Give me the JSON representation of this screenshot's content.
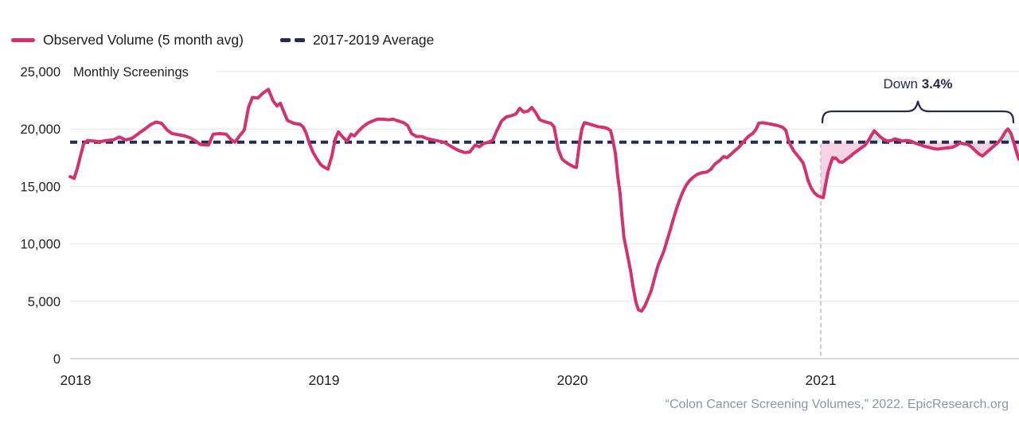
{
  "legend": {
    "items": [
      {
        "label": "Observed Volume (5 month avg)"
      },
      {
        "label": "2017-2019 Average"
      }
    ]
  },
  "axes": {
    "y_unit_label": "Monthly Screenings",
    "y_ticks": [
      {
        "label": "25,000",
        "value": 25000
      },
      {
        "label": "20,000",
        "value": 20000
      },
      {
        "label": "15,000",
        "value": 15000
      },
      {
        "label": "10,000",
        "value": 10000
      },
      {
        "label": "5,000",
        "value": 5000
      },
      {
        "label": "0",
        "value": 0
      }
    ],
    "x_ticks": [
      {
        "label": "2018",
        "t": 2018
      },
      {
        "label": "2019",
        "t": 2019
      },
      {
        "label": "2020",
        "t": 2020
      },
      {
        "label": "2021",
        "t": 2021
      }
    ]
  },
  "annotation": {
    "prefix": "Down ",
    "value": "3.4%"
  },
  "source_text": "“Colon Cancer Screening Volumes,” 2022. EpicResearch.org",
  "colors": {
    "observed_line": "#d2336e",
    "average_line": "#262b52",
    "below_avg_fill": "#f8d3e3",
    "above_avg_fill": "#c7e9e4",
    "annotation_text": "#262b52",
    "gridline": "#e4e4e4",
    "axis_line": "#c9cdd3",
    "divider_line": "#c6c6c6",
    "tick_text": "#1f1f1f",
    "source_text": "#8c95a5"
  },
  "chart_data": {
    "type": "line",
    "title": "",
    "ylabel": "Monthly Screenings",
    "ylim": [
      0,
      25000
    ],
    "xlim": [
      2017.97,
      2021.8
    ],
    "x_unit": "decimal_year",
    "grid": true,
    "legend_position": "top-left",
    "annotation": "Down 3.4%",
    "highlight_from": 2021.0,
    "average_2017_2019": 18850,
    "series": [
      {
        "name": "Observed Volume (5 month avg)",
        "points": [
          [
            2017.978,
            15850
          ],
          [
            2017.994,
            15700
          ],
          [
            2018.006,
            16500
          ],
          [
            2018.019,
            17600
          ],
          [
            2018.032,
            18700
          ],
          [
            2018.048,
            19000
          ],
          [
            2018.074,
            18950
          ],
          [
            2018.099,
            18900
          ],
          [
            2018.125,
            19000
          ],
          [
            2018.151,
            19050
          ],
          [
            2018.176,
            19300
          ],
          [
            2018.202,
            19050
          ],
          [
            2018.228,
            19200
          ],
          [
            2018.253,
            19600
          ],
          [
            2018.279,
            20000
          ],
          [
            2018.304,
            20400
          ],
          [
            2018.324,
            20600
          ],
          [
            2018.346,
            20500
          ],
          [
            2018.369,
            19900
          ],
          [
            2018.388,
            19600
          ],
          [
            2018.413,
            19500
          ],
          [
            2018.439,
            19400
          ],
          [
            2018.465,
            19200
          ],
          [
            2018.484,
            18950
          ],
          [
            2018.503,
            18650
          ],
          [
            2018.535,
            18600
          ],
          [
            2018.554,
            19550
          ],
          [
            2018.58,
            19600
          ],
          [
            2018.606,
            19550
          ],
          [
            2018.625,
            19100
          ],
          [
            2018.641,
            18850
          ],
          [
            2018.66,
            19400
          ],
          [
            2018.679,
            19900
          ],
          [
            2018.696,
            21900
          ],
          [
            2018.712,
            22750
          ],
          [
            2018.734,
            22700
          ],
          [
            2018.753,
            23100
          ],
          [
            2018.776,
            23450
          ],
          [
            2018.795,
            22450
          ],
          [
            2018.811,
            22000
          ],
          [
            2018.824,
            22250
          ],
          [
            2018.84,
            21400
          ],
          [
            2018.853,
            20750
          ],
          [
            2018.878,
            20500
          ],
          [
            2018.904,
            20400
          ],
          [
            2018.917,
            20150
          ],
          [
            2018.929,
            19600
          ],
          [
            2018.942,
            18700
          ],
          [
            2018.955,
            18000
          ],
          [
            2018.971,
            17400
          ],
          [
            2018.987,
            16900
          ],
          [
            2019.003,
            16650
          ],
          [
            2019.016,
            16500
          ],
          [
            2019.032,
            17700
          ],
          [
            2019.045,
            19100
          ],
          [
            2019.058,
            19750
          ],
          [
            2019.077,
            19250
          ],
          [
            2019.093,
            18950
          ],
          [
            2019.109,
            19550
          ],
          [
            2019.122,
            19400
          ],
          [
            2019.138,
            19800
          ],
          [
            2019.157,
            20200
          ],
          [
            2019.176,
            20500
          ],
          [
            2019.196,
            20700
          ],
          [
            2019.215,
            20850
          ],
          [
            2019.237,
            20850
          ],
          [
            2019.26,
            20800
          ],
          [
            2019.279,
            20850
          ],
          [
            2019.298,
            20700
          ],
          [
            2019.321,
            20550
          ],
          [
            2019.337,
            20300
          ],
          [
            2019.353,
            19600
          ],
          [
            2019.372,
            19350
          ],
          [
            2019.394,
            19350
          ],
          [
            2019.417,
            19150
          ],
          [
            2019.439,
            19050
          ],
          [
            2019.462,
            18950
          ],
          [
            2019.484,
            18850
          ],
          [
            2019.503,
            18600
          ],
          [
            2019.526,
            18300
          ],
          [
            2019.545,
            18100
          ],
          [
            2019.567,
            17950
          ],
          [
            2019.587,
            18000
          ],
          [
            2019.609,
            18600
          ],
          [
            2019.625,
            18450
          ],
          [
            2019.644,
            18750
          ],
          [
            2019.663,
            18850
          ],
          [
            2019.68,
            19050
          ],
          [
            2019.695,
            19800
          ],
          [
            2019.715,
            20700
          ],
          [
            2019.734,
            21050
          ],
          [
            2019.753,
            21150
          ],
          [
            2019.772,
            21300
          ],
          [
            2019.788,
            21800
          ],
          [
            2019.804,
            21480
          ],
          [
            2019.821,
            21560
          ],
          [
            2019.837,
            21880
          ],
          [
            2019.853,
            21400
          ],
          [
            2019.869,
            20800
          ],
          [
            2019.891,
            20620
          ],
          [
            2019.913,
            20500
          ],
          [
            2019.926,
            20200
          ],
          [
            2019.936,
            19100
          ],
          [
            2019.942,
            18300
          ],
          [
            2019.949,
            17900
          ],
          [
            2019.958,
            17400
          ],
          [
            2019.968,
            17200
          ],
          [
            2019.981,
            17000
          ],
          [
            2019.994,
            16850
          ],
          [
            2020.006,
            16700
          ],
          [
            2020.016,
            16650
          ],
          [
            2020.029,
            18800
          ],
          [
            2020.038,
            20000
          ],
          [
            2020.048,
            20550
          ],
          [
            2020.061,
            20480
          ],
          [
            2020.08,
            20350
          ],
          [
            2020.103,
            20200
          ],
          [
            2020.122,
            20150
          ],
          [
            2020.141,
            20050
          ],
          [
            2020.154,
            19850
          ],
          [
            2020.163,
            19000
          ],
          [
            2020.173,
            17900
          ],
          [
            2020.183,
            15800
          ],
          [
            2020.192,
            14400
          ],
          [
            2020.199,
            12500
          ],
          [
            2020.208,
            10500
          ],
          [
            2020.221,
            9100
          ],
          [
            2020.234,
            7700
          ],
          [
            2020.244,
            6300
          ],
          [
            2020.256,
            4900
          ],
          [
            2020.266,
            4250
          ],
          [
            2020.279,
            4150
          ],
          [
            2020.292,
            4600
          ],
          [
            2020.304,
            5200
          ],
          [
            2020.317,
            5900
          ],
          [
            2020.327,
            6700
          ],
          [
            2020.337,
            7500
          ],
          [
            2020.346,
            8200
          ],
          [
            2020.356,
            8700
          ],
          [
            2020.369,
            9400
          ],
          [
            2020.381,
            10300
          ],
          [
            2020.394,
            11200
          ],
          [
            2020.407,
            12200
          ],
          [
            2020.42,
            13100
          ],
          [
            2020.433,
            13900
          ],
          [
            2020.446,
            14600
          ],
          [
            2020.458,
            15100
          ],
          [
            2020.471,
            15500
          ],
          [
            2020.487,
            15800
          ],
          [
            2020.503,
            16050
          ],
          [
            2020.522,
            16200
          ],
          [
            2020.542,
            16250
          ],
          [
            2020.558,
            16500
          ],
          [
            2020.574,
            16950
          ],
          [
            2020.593,
            17250
          ],
          [
            2020.609,
            17600
          ],
          [
            2020.622,
            17500
          ],
          [
            2020.638,
            17800
          ],
          [
            2020.654,
            18100
          ],
          [
            2020.67,
            18400
          ],
          [
            2020.689,
            18900
          ],
          [
            2020.708,
            19350
          ],
          [
            2020.728,
            19650
          ],
          [
            2020.74,
            20000
          ],
          [
            2020.75,
            20500
          ],
          [
            2020.766,
            20550
          ],
          [
            2020.785,
            20480
          ],
          [
            2020.804,
            20400
          ],
          [
            2020.827,
            20300
          ],
          [
            2020.846,
            20150
          ],
          [
            2020.859,
            19900
          ],
          [
            2020.869,
            19100
          ],
          [
            2020.878,
            18600
          ],
          [
            2020.891,
            18100
          ],
          [
            2020.904,
            17750
          ],
          [
            2020.917,
            17400
          ],
          [
            2020.929,
            17050
          ],
          [
            2020.939,
            16300
          ],
          [
            2020.949,
            15500
          ],
          [
            2020.962,
            14850
          ],
          [
            2020.974,
            14450
          ],
          [
            2020.987,
            14200
          ],
          [
            2021.0,
            14080
          ],
          [
            2021.01,
            14020
          ],
          [
            2021.019,
            15100
          ],
          [
            2021.029,
            16200
          ],
          [
            2021.038,
            16900
          ],
          [
            2021.048,
            17500
          ],
          [
            2021.061,
            17450
          ],
          [
            2021.074,
            17150
          ],
          [
            2021.087,
            17100
          ],
          [
            2021.099,
            17300
          ],
          [
            2021.115,
            17550
          ],
          [
            2021.131,
            17850
          ],
          [
            2021.147,
            18100
          ],
          [
            2021.163,
            18350
          ],
          [
            2021.179,
            18600
          ],
          [
            2021.192,
            19000
          ],
          [
            2021.205,
            19500
          ],
          [
            2021.215,
            19850
          ],
          [
            2021.227,
            19600
          ],
          [
            2021.24,
            19300
          ],
          [
            2021.253,
            19100
          ],
          [
            2021.269,
            18950
          ],
          [
            2021.285,
            19000
          ],
          [
            2021.298,
            19150
          ],
          [
            2021.314,
            19050
          ],
          [
            2021.33,
            18950
          ],
          [
            2021.346,
            19000
          ],
          [
            2021.362,
            18950
          ],
          [
            2021.378,
            18800
          ],
          [
            2021.397,
            18650
          ],
          [
            2021.417,
            18500
          ],
          [
            2021.436,
            18400
          ],
          [
            2021.452,
            18300
          ],
          [
            2021.471,
            18250
          ],
          [
            2021.49,
            18300
          ],
          [
            2021.51,
            18350
          ],
          [
            2021.529,
            18400
          ],
          [
            2021.545,
            18550
          ],
          [
            2021.561,
            18800
          ],
          [
            2021.577,
            18700
          ],
          [
            2021.593,
            18650
          ],
          [
            2021.609,
            18400
          ],
          [
            2021.625,
            18050
          ],
          [
            2021.638,
            17800
          ],
          [
            2021.651,
            17650
          ],
          [
            2021.667,
            17950
          ],
          [
            2021.683,
            18250
          ],
          [
            2021.699,
            18550
          ],
          [
            2021.715,
            18850
          ],
          [
            2021.731,
            19300
          ],
          [
            2021.744,
            19800
          ],
          [
            2021.754,
            20000
          ],
          [
            2021.766,
            19600
          ],
          [
            2021.779,
            18700
          ],
          [
            2021.789,
            17900
          ],
          [
            2021.798,
            17350
          ]
        ]
      },
      {
        "name": "2017-2019 Average",
        "type": "constant",
        "value": 18850
      }
    ]
  }
}
